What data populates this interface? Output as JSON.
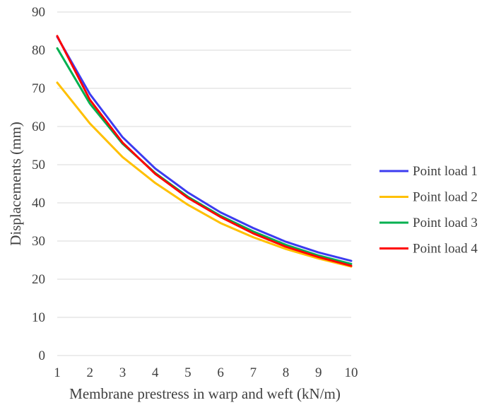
{
  "chart_data": {
    "type": "line",
    "title": "",
    "xlabel": "Membrane prestress in warp and weft (kN/m)",
    "ylabel": "Displacements (mm)",
    "x": [
      1,
      2,
      3,
      4,
      5,
      6,
      7,
      8,
      9,
      10
    ],
    "xticks": [
      "1",
      "2",
      "3",
      "4",
      "5",
      "6",
      "7",
      "8",
      "9",
      "10"
    ],
    "ylim": [
      0,
      90
    ],
    "yticks": [
      "0",
      "10",
      "20",
      "30",
      "40",
      "50",
      "60",
      "70",
      "80",
      "90"
    ],
    "grid": true,
    "legend_position": "right",
    "series": [
      {
        "name": "Point load 1",
        "color": "#3c3cf0",
        "values": [
          83.5,
          68.5,
          57.2,
          49.0,
          42.7,
          37.5,
          33.4,
          29.8,
          27.0,
          24.8
        ]
      },
      {
        "name": "Point load 2",
        "color": "#ffc000",
        "values": [
          71.5,
          60.8,
          52.0,
          45.2,
          39.5,
          34.7,
          31.0,
          27.9,
          25.4,
          23.3
        ]
      },
      {
        "name": "Point load 3",
        "color": "#00b050",
        "values": [
          80.5,
          66.0,
          55.5,
          47.8,
          41.6,
          36.6,
          32.5,
          29.0,
          26.2,
          24.0
        ]
      },
      {
        "name": "Point load 4",
        "color": "#ff0000",
        "values": [
          83.7,
          67.0,
          55.8,
          47.6,
          41.3,
          36.3,
          32.0,
          28.5,
          25.8,
          23.5
        ]
      }
    ]
  }
}
